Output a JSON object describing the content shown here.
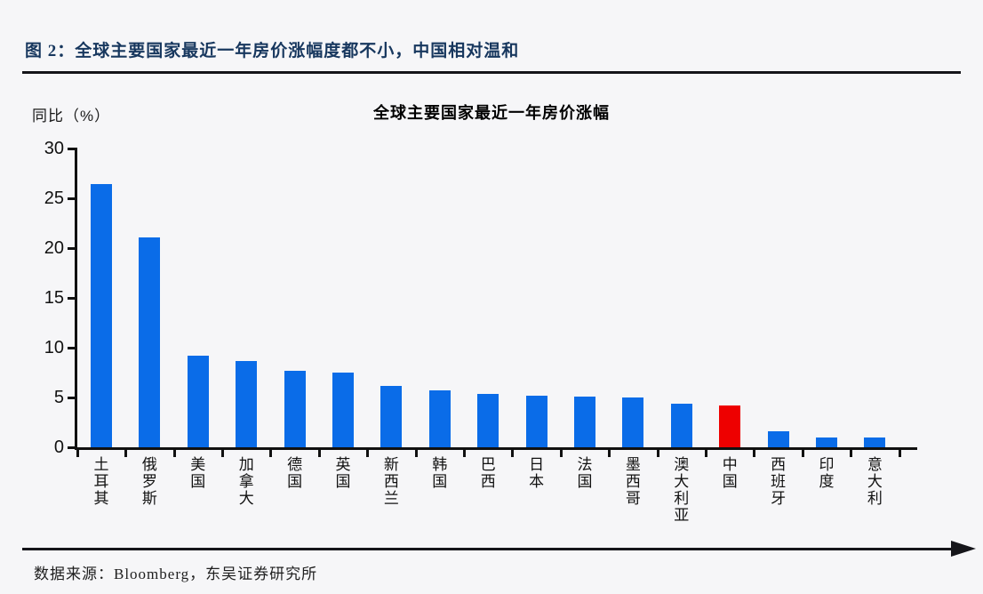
{
  "header": {
    "title": "图 2：全球主要国家最近一年房价涨幅度都不小，中国相对温和"
  },
  "chart_data": {
    "type": "bar",
    "title": "全球主要国家最近一年房价涨幅",
    "ylabel": "同比（%）",
    "xlabel": "",
    "ylim": [
      0,
      30
    ],
    "yticks": [
      0,
      5,
      10,
      15,
      20,
      25,
      30
    ],
    "grid": false,
    "legend": "none",
    "categories": [
      "土耳其",
      "俄罗斯",
      "美国",
      "加拿大",
      "德国",
      "英国",
      "新西兰",
      "韩国",
      "巴西",
      "日本",
      "法国",
      "墨西哥",
      "澳大利亚",
      "中国",
      "西班牙",
      "印度",
      "意大利"
    ],
    "values": [
      26.4,
      21.1,
      9.2,
      8.7,
      7.7,
      7.5,
      6.2,
      5.7,
      5.4,
      5.2,
      5.1,
      5.0,
      4.4,
      4.2,
      1.6,
      1.0,
      1.0
    ],
    "bar_color": "#0a6ce8",
    "highlight_category": "中国",
    "highlight_color": "#ee0000"
  },
  "footer": {
    "source": "数据来源：Bloomberg，东吴证券研究所"
  },
  "colors": {
    "header_text": "#17375e",
    "rule": "#15151a",
    "background": "#f6f6f8"
  }
}
